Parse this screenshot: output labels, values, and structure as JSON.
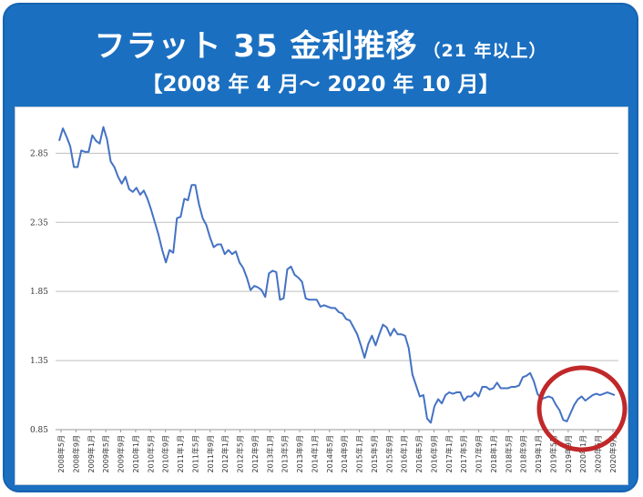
{
  "header": {
    "title": "フラット 35 金利推移",
    "subtitle": "（21 年以上）",
    "period": "【2008 年 4 月～ 2020 年 10 月】"
  },
  "colors": {
    "banner": "#1a6fc0",
    "line": "#4472c4",
    "grid": "#bfbfbf",
    "highlight_circle": "#c0282a"
  },
  "annotation": {
    "shape": "circle",
    "highlights": "2019-2020 segment"
  },
  "chart_data": {
    "type": "line",
    "ylim": [
      0.85,
      3.05
    ],
    "yticks": [
      "2.85",
      "2.35",
      "1.85",
      "1.35",
      "0.85"
    ],
    "ytick_values": [
      2.85,
      2.35,
      1.85,
      1.35,
      0.85
    ],
    "grid": true,
    "xtick_labels": [
      "2008年5月",
      "2008年9月",
      "2009年1月",
      "2009年5月",
      "2009年9月",
      "2010年1月",
      "2010年5月",
      "2010年9月",
      "2011年1月",
      "2011年5月",
      "2011年9月",
      "2012年1月",
      "2012年5月",
      "2012年9月",
      "2013年1月",
      "2013年5月",
      "2013年9月",
      "2014年1月",
      "2014年5月",
      "2014年9月",
      "2015年1月",
      "2015年5月",
      "2015年9月",
      "2016年1月",
      "2016年5月",
      "2016年9月",
      "2017年1月",
      "2017年5月",
      "2017年9月",
      "2018年1月",
      "2018年5月",
      "2018年9月",
      "2019年1月",
      "2019年5月",
      "2019年9月",
      "2020年1月",
      "2020年5月",
      "2020年9月"
    ],
    "series": [
      {
        "values": [
          2.94,
          3.03,
          2.97,
          2.9,
          2.75,
          2.75,
          2.87,
          2.86,
          2.86,
          2.98,
          2.94,
          2.92,
          3.04,
          2.95,
          2.79,
          2.75,
          2.68,
          2.63,
          2.68,
          2.59,
          2.57,
          2.6,
          2.55,
          2.58,
          2.52,
          2.44,
          2.35,
          2.26,
          2.15,
          2.06,
          2.15,
          2.13,
          2.38,
          2.39,
          2.52,
          2.51,
          2.62,
          2.62,
          2.48,
          2.38,
          2.33,
          2.24,
          2.17,
          2.19,
          2.19,
          2.12,
          2.15,
          2.12,
          2.14,
          2.06,
          2.02,
          1.95,
          1.86,
          1.89,
          1.88,
          1.86,
          1.81,
          1.98,
          2.0,
          1.99,
          1.79,
          1.8,
          2.01,
          2.03,
          1.97,
          1.95,
          1.92,
          1.8,
          1.79,
          1.79,
          1.79,
          1.74,
          1.75,
          1.74,
          1.73,
          1.73,
          1.7,
          1.69,
          1.65,
          1.64,
          1.59,
          1.54,
          1.46,
          1.37,
          1.47,
          1.53,
          1.46,
          1.54,
          1.61,
          1.59,
          1.53,
          1.58,
          1.54,
          1.54,
          1.53,
          1.44,
          1.25,
          1.17,
          1.09,
          1.1,
          0.93,
          0.9,
          1.02,
          1.07,
          1.04,
          1.1,
          1.12,
          1.11,
          1.12,
          1.12,
          1.06,
          1.09,
          1.09,
          1.12,
          1.09,
          1.16,
          1.16,
          1.14,
          1.15,
          1.19,
          1.15,
          1.15,
          1.15,
          1.16,
          1.16,
          1.17,
          1.23,
          1.24,
          1.26,
          1.2,
          1.11,
          1.07,
          1.08,
          1.09,
          1.08,
          1.03,
          0.99,
          0.92,
          0.91,
          0.97,
          1.03,
          1.07,
          1.09,
          1.06,
          1.08,
          1.1,
          1.11,
          1.1,
          1.11,
          1.12,
          1.11,
          1.1
        ]
      }
    ]
  }
}
